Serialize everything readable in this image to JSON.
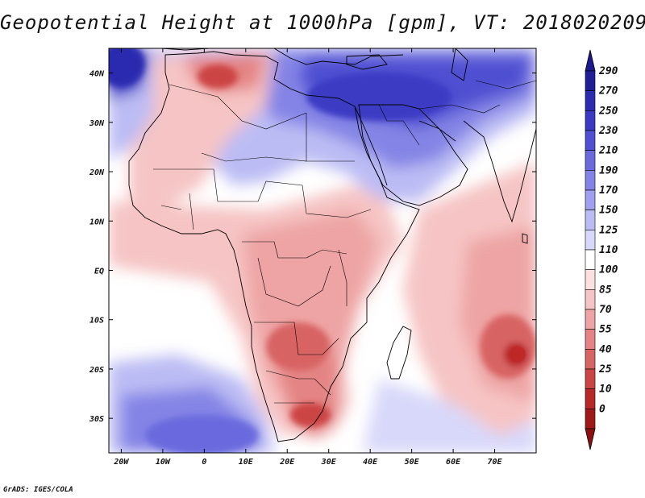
{
  "title": "Geopotential Height at 1000hPa [gpm], VT: 2018020209",
  "footer": "GrADS: IGES/COLA",
  "map": {
    "lon_range": [
      -23,
      80
    ],
    "lat_range": [
      -37,
      45
    ],
    "lon_ticks": [
      {
        "lon": -20,
        "label": "20W"
      },
      {
        "lon": -10,
        "label": "10W"
      },
      {
        "lon": 0,
        "label": "0"
      },
      {
        "lon": 10,
        "label": "10E"
      },
      {
        "lon": 20,
        "label": "20E"
      },
      {
        "lon": 30,
        "label": "30E"
      },
      {
        "lon": 40,
        "label": "40E"
      },
      {
        "lon": 50,
        "label": "50E"
      },
      {
        "lon": 60,
        "label": "60E"
      },
      {
        "lon": 70,
        "label": "70E"
      }
    ],
    "lat_ticks": [
      {
        "lat": 40,
        "label": "40N"
      },
      {
        "lat": 30,
        "label": "30N"
      },
      {
        "lat": 20,
        "label": "20N"
      },
      {
        "lat": 10,
        "label": "10N"
      },
      {
        "lat": 0,
        "label": "EQ"
      },
      {
        "lat": -10,
        "label": "10S"
      },
      {
        "lat": -20,
        "label": "20S"
      },
      {
        "lat": -30,
        "label": "30S"
      }
    ]
  },
  "colorbar": {
    "levels": [
      "290",
      "270",
      "250",
      "230",
      "210",
      "190",
      "170",
      "150",
      "125",
      "110",
      "100",
      "85",
      "70",
      "55",
      "40",
      "25",
      "10",
      "0"
    ],
    "colors": [
      "#1e1e96",
      "#2c2cb0",
      "#3a3ac4",
      "#5050d2",
      "#6a6ade",
      "#8484e6",
      "#a0a0ee",
      "#bcbcf4",
      "#d8d8fa",
      "#ffffff",
      "#fbe0e0",
      "#f6c4c4",
      "#eea4a4",
      "#e48484",
      "#d86464",
      "#cc4444",
      "#b82828",
      "#a01818"
    ],
    "top_cap_color": "#1a1a8c",
    "bottom_cap_color": "#8c1010"
  },
  "highs": [
    {
      "name": "indian-ocean-low-center",
      "lon": 75.5,
      "lat": -17,
      "color": "#c02828"
    }
  ]
}
